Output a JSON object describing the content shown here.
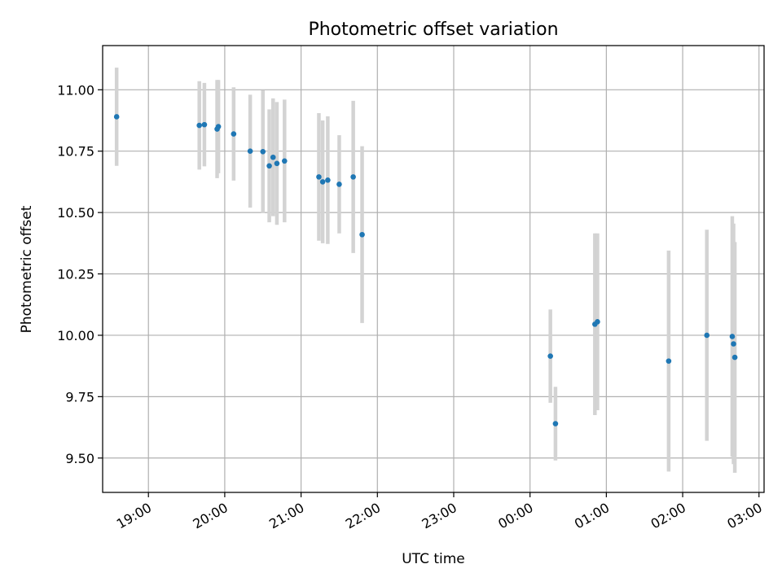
{
  "chart_data": {
    "type": "scatter",
    "title": "Photometric offset variation",
    "xlabel": "UTC time",
    "ylabel": "Photometric offset",
    "x_unit": "UTC time (HH:MM, continuing past midnight)",
    "xlim": [
      "18:24",
      "03:04"
    ],
    "ylim": [
      9.36,
      11.18
    ],
    "x_ticks": [
      "19:00",
      "20:00",
      "21:00",
      "22:00",
      "23:00",
      "00:00",
      "01:00",
      "02:00",
      "03:00"
    ],
    "y_ticks": [
      "9.50",
      "9.75",
      "10.00",
      "10.25",
      "10.50",
      "10.75",
      "11.00"
    ],
    "grid": true,
    "legend": "none",
    "colors": {
      "point": "#1f77b4",
      "errorbar": "#d3d3d3",
      "grid": "#b0b0b0"
    },
    "points": [
      {
        "x": "18:35",
        "y": 10.89,
        "yerr": 0.2
      },
      {
        "x": "19:40",
        "y": 10.855,
        "yerr": 0.18
      },
      {
        "x": "19:44",
        "y": 10.858,
        "yerr": 0.17
      },
      {
        "x": "19:54",
        "y": 10.84,
        "yerr": 0.2
      },
      {
        "x": "19:55",
        "y": 10.85,
        "yerr": 0.19
      },
      {
        "x": "20:07",
        "y": 10.82,
        "yerr": 0.19
      },
      {
        "x": "20:20",
        "y": 10.75,
        "yerr": 0.23
      },
      {
        "x": "20:30",
        "y": 10.748,
        "yerr": 0.25
      },
      {
        "x": "20:35",
        "y": 10.69,
        "yerr": 0.23
      },
      {
        "x": "20:38",
        "y": 10.725,
        "yerr": 0.24
      },
      {
        "x": "20:41",
        "y": 10.7,
        "yerr": 0.25
      },
      {
        "x": "20:47",
        "y": 10.71,
        "yerr": 0.25
      },
      {
        "x": "21:14",
        "y": 10.645,
        "yerr": 0.26
      },
      {
        "x": "21:17",
        "y": 10.625,
        "yerr": 0.25
      },
      {
        "x": "21:21",
        "y": 10.632,
        "yerr": 0.26
      },
      {
        "x": "21:30",
        "y": 10.615,
        "yerr": 0.2
      },
      {
        "x": "21:41",
        "y": 10.645,
        "yerr": 0.31
      },
      {
        "x": "21:48",
        "y": 10.41,
        "yerr": 0.36
      },
      {
        "x": "00:16",
        "y": 9.915,
        "yerr": 0.19
      },
      {
        "x": "00:20",
        "y": 9.64,
        "yerr": 0.15
      },
      {
        "x": "00:51",
        "y": 10.045,
        "yerr": 0.37
      },
      {
        "x": "00:53",
        "y": 10.055,
        "yerr": 0.36
      },
      {
        "x": "01:49",
        "y": 9.895,
        "yerr": 0.45
      },
      {
        "x": "02:19",
        "y": 10.0,
        "yerr": 0.43
      },
      {
        "x": "02:39",
        "y": 9.995,
        "yerr": 0.49
      },
      {
        "x": "02:40",
        "y": 9.965,
        "yerr": 0.49
      },
      {
        "x": "02:41",
        "y": 9.91,
        "yerr": 0.47
      }
    ]
  }
}
